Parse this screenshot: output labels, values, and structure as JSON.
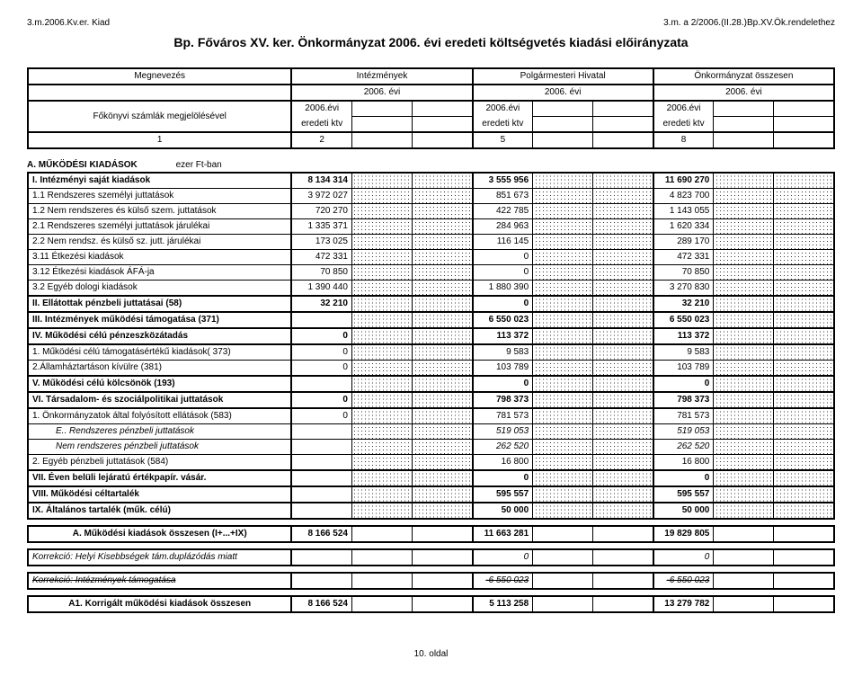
{
  "header": {
    "left": "3.m.2006.Kv.er. Kiad",
    "right": "3.m. a 2/2006.(II.28.)Bp.XV.Ök.rendelethez"
  },
  "title": "Bp. Főváros XV. ker. Önkormányzat 2006. évi eredeti költségvetés kiadási előirányzata",
  "columns": {
    "megnevezes": "Megnevezés",
    "intezmenyek": "Intézmények",
    "polgarmesteri": "Polgármesteri Hivatal",
    "onkormanyzat": "Önkormányzat összesen",
    "year": "2006. évi",
    "fokonyvi": "Főkönyvi számlák megjelölésével",
    "eredeti_line1": "2006.évi",
    "eredeti_line2": "eredeti ktv",
    "colnums": [
      "1",
      "2",
      "5",
      "8"
    ]
  },
  "section_a_title": "A. MŰKÖDÉSI KIADÁSOK",
  "section_a_unit": "ezer Ft-ban",
  "rows": {
    "r0": {
      "label": "I. Intézményi saját kiadások",
      "c2": "8 134 314",
      "c5": "3 555 956",
      "c8": "11 690 270",
      "bold": true
    },
    "r1": {
      "label": "1.1 Rendszeres személyi juttatások",
      "c2": "3 972 027",
      "c5": "851 673",
      "c8": "4 823 700"
    },
    "r2": {
      "label": "1.2 Nem rendszeres és külső szem. juttatások",
      "c2": "720 270",
      "c5": "422 785",
      "c8": "1 143 055"
    },
    "r3": {
      "label": "2.1 Rendszeres személyi juttatások járulékai",
      "c2": "1 335 371",
      "c5": "284 963",
      "c8": "1 620 334"
    },
    "r4": {
      "label": "2.2 Nem rendsz. és külső sz. jutt. járulékai",
      "c2": "173 025",
      "c5": "116 145",
      "c8": "289 170"
    },
    "r5": {
      "label": "3.11 Étkezési kiadások",
      "c2": "472 331",
      "c5": "0",
      "c8": "472 331"
    },
    "r6": {
      "label": "3.12 Étkezési kiadások ÁFÁ-ja",
      "c2": "70 850",
      "c5": "0",
      "c8": "70 850"
    },
    "r7": {
      "label": "3.2 Egyéb dologi kiadások",
      "c2": "1 390 440",
      "c5": "1 880 390",
      "c8": "3 270 830"
    },
    "r8": {
      "label": "II. Ellátottak pénzbeli juttatásai (58)",
      "c2": "32 210",
      "c5": "0",
      "c8": "32 210",
      "bold": true
    },
    "r9": {
      "label": "III. Intézmények működési támogatása (371)",
      "c2": "",
      "c5": "6 550 023",
      "c8": "6 550 023",
      "bold": true
    },
    "r10": {
      "label": "IV. Működési célú pénzeszközátadás",
      "c2": "0",
      "c5": "113 372",
      "c8": "113 372",
      "bold": true
    },
    "r11": {
      "label": "1. Működési célú támogatásértékű kiadások( 373)",
      "c2": "0",
      "c5": "9 583",
      "c8": "9 583"
    },
    "r12": {
      "label": "2.Államháztartáson kívülre (381)",
      "c2": "0",
      "c5": "103 789",
      "c8": "103 789"
    },
    "r13": {
      "label": "V. Működési célú kölcsönök (193)",
      "c2": "",
      "c5": "0",
      "c8": "0",
      "bold": true
    },
    "r14": {
      "label": "VI. Társadalom- és szociálpolitikai juttatások",
      "c2": "0",
      "c5": "798 373",
      "c8": "798 373",
      "bold": true
    },
    "r15": {
      "label": "1. Önkormányzatok által folyósított ellátások (583)",
      "c2": "0",
      "c5": "781 573",
      "c8": "781 573"
    },
    "r16": {
      "label": "E.. Rendszeres pénzbeli juttatások",
      "c2": "",
      "c5": "519 053",
      "c8": "519 053",
      "italic": true,
      "indent": true
    },
    "r17": {
      "label": "Nem rendszeres pénzbeli juttatások",
      "c2": "",
      "c5": "262 520",
      "c8": "262 520",
      "italic": true,
      "indent": true
    },
    "r18": {
      "label": "2. Egyéb pénzbeli juttatások (584)",
      "c2": "",
      "c5": "16 800",
      "c8": "16 800"
    },
    "r19": {
      "label": "VII. Éven belüli lejáratú értékpapír. vásár.",
      "c2": "",
      "c5": "0",
      "c8": "0",
      "bold": true
    },
    "r20": {
      "label": "VIII. Működési céltartalék",
      "c2": "",
      "c5": "595 557",
      "c8": "595 557",
      "bold": true
    },
    "r21": {
      "label": " IX.  Általános tartalék (műk. célú)",
      "c2": "",
      "c5": "50 000",
      "c8": "50 000",
      "bold": true
    }
  },
  "sum_row": {
    "label": "A. Működési kiadások összesen (I+...+IX)",
    "c2": "8 166 524",
    "c5": "11 663 281",
    "c8": "19 829 805",
    "bold": true
  },
  "korr1": {
    "label": "Korrekció: Helyi Kisebbségek tám.duplázódás miatt",
    "c5": "0",
    "c8": "0",
    "italic": true
  },
  "korr2": {
    "label": "Korrekció: Intézmények támogatása",
    "c5": "-6 550 023",
    "c8": "-6 550 023",
    "italic": true,
    "strike": true
  },
  "a1": {
    "label": "A1. Korrigált működési kiadások összesen",
    "c2": "8 166 524",
    "c5": "5 113 258",
    "c8": "13 279 782",
    "bold": true
  },
  "footer": "10. oldal",
  "hatch_color": "#333333"
}
